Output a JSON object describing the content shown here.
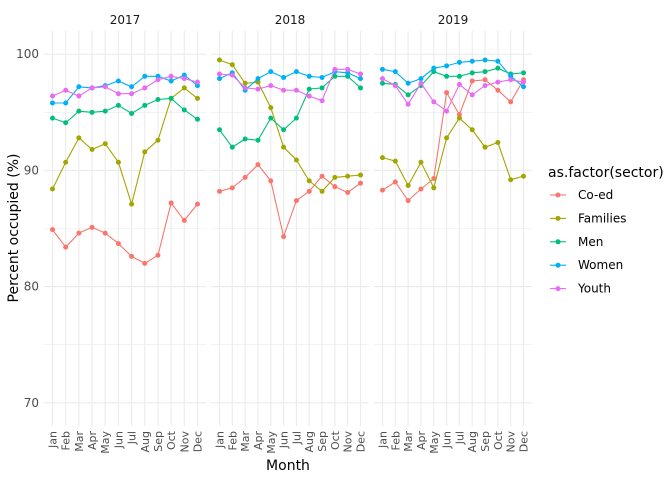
{
  "chart_data": {
    "type": "line",
    "xlabel": "Month",
    "ylabel": "Percent occupied (%)",
    "ylim": [
      68,
      102
    ],
    "yticks": [
      70,
      80,
      90,
      100
    ],
    "grid": true,
    "categories": [
      "Jan",
      "Feb",
      "Mar",
      "Apr",
      "May",
      "Jun",
      "Jul",
      "Aug",
      "Sep",
      "Oct",
      "Nov",
      "Dec"
    ],
    "facets": [
      "2017",
      "2018",
      "2019"
    ],
    "legend": {
      "title": "as.factor(sector)",
      "position": "right",
      "entries": [
        "Co-ed",
        "Families",
        "Men",
        "Women",
        "Youth"
      ]
    },
    "colors": {
      "Co-ed": "#F8766D",
      "Families": "#A3A500",
      "Men": "#00BF7D",
      "Women": "#00B0F6",
      "Youth": "#E76BF3"
    },
    "series": {
      "2017": [
        {
          "name": "Co-ed",
          "values": [
            84.9,
            83.4,
            84.6,
            85.1,
            84.6,
            83.7,
            82.6,
            82.0,
            82.7,
            87.2,
            85.7,
            87.1
          ]
        },
        {
          "name": "Families",
          "values": [
            88.4,
            90.7,
            92.8,
            91.8,
            92.3,
            90.7,
            87.1,
            91.6,
            92.6,
            96.2,
            97.1,
            96.2
          ]
        },
        {
          "name": "Men",
          "values": [
            94.5,
            94.1,
            95.1,
            95.0,
            95.1,
            95.6,
            94.9,
            95.6,
            96.1,
            96.2,
            95.2,
            94.4
          ]
        },
        {
          "name": "Women",
          "values": [
            95.8,
            95.8,
            97.2,
            97.1,
            97.3,
            97.7,
            97.2,
            98.1,
            98.1,
            97.7,
            98.2,
            97.3
          ]
        },
        {
          "name": "Youth",
          "values": [
            96.4,
            96.9,
            96.4,
            97.1,
            97.2,
            96.6,
            96.6,
            97.1,
            97.8,
            98.1,
            97.9,
            97.6
          ]
        }
      ],
      "2018": [
        {
          "name": "Co-ed",
          "values": [
            88.2,
            88.5,
            89.4,
            90.5,
            89.1,
            84.3,
            87.4,
            88.2,
            89.5,
            88.6,
            88.1,
            88.9
          ]
        },
        {
          "name": "Families",
          "values": [
            99.5,
            99.1,
            97.5,
            97.6,
            95.4,
            92.0,
            90.9,
            89.1,
            88.2,
            89.4,
            89.5,
            89.6
          ]
        },
        {
          "name": "Men",
          "values": [
            93.5,
            92.0,
            92.7,
            92.6,
            94.5,
            93.5,
            94.5,
            97.0,
            97.1,
            98.1,
            98.1,
            97.1
          ]
        },
        {
          "name": "Women",
          "values": [
            97.9,
            98.4,
            96.9,
            97.9,
            98.5,
            98.0,
            98.5,
            98.1,
            98.0,
            98.5,
            98.4,
            97.9
          ]
        },
        {
          "name": "Youth",
          "values": [
            98.3,
            98.2,
            97.1,
            97.0,
            97.3,
            96.9,
            96.9,
            96.4,
            96.0,
            98.7,
            98.7,
            98.3
          ]
        }
      ],
      "2019": [
        {
          "name": "Co-ed",
          "values": [
            88.3,
            89.0,
            87.4,
            88.4,
            89.3,
            96.7,
            94.8,
            97.7,
            97.8,
            96.9,
            95.9,
            97.8
          ]
        },
        {
          "name": "Families",
          "values": [
            91.1,
            90.8,
            88.7,
            90.7,
            88.5,
            92.8,
            94.5,
            93.5,
            92.0,
            92.4,
            89.2,
            89.5
          ]
        },
        {
          "name": "Men",
          "values": [
            97.5,
            97.4,
            96.5,
            97.3,
            98.5,
            98.1,
            98.1,
            98.4,
            98.5,
            98.8,
            98.3,
            98.4
          ]
        },
        {
          "name": "Women",
          "values": [
            98.7,
            98.5,
            97.5,
            97.9,
            98.8,
            99.0,
            99.3,
            99.4,
            99.5,
            99.4,
            98.1,
            97.2
          ]
        },
        {
          "name": "Youth",
          "values": [
            97.9,
            97.3,
            95.7,
            97.5,
            95.9,
            95.1,
            97.4,
            96.5,
            97.3,
            97.6,
            97.8,
            97.6
          ]
        }
      ]
    }
  }
}
